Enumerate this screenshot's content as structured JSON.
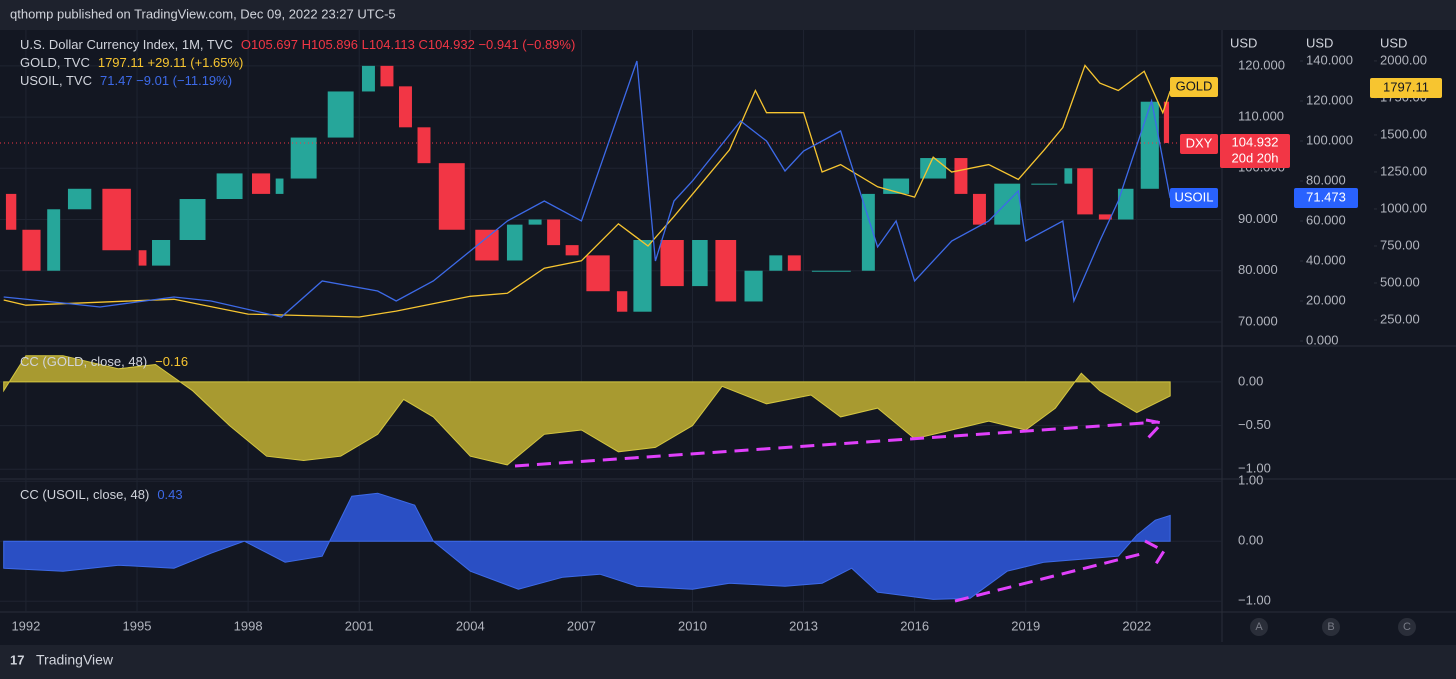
{
  "header": {
    "text": "qthomp published on TradingView.com, Dec 09, 2022 23:27 UTC-5"
  },
  "footer": {
    "brand": "TradingView",
    "buttons": [
      "A",
      "B",
      "C"
    ]
  },
  "chart_data": [
    {
      "type": "line",
      "axis_units": [
        "USD",
        "USD",
        "USD"
      ],
      "legend_stats": [
        "O105.697 H105.896 L104.113 C104.932 −0.941 (−0.89%)",
        "1797.11 +29.11 (+1.65%)",
        "71.47 −9.01 (−11.19%)"
      ],
      "badges": [
        {
          "name": "GOLD",
          "label": "1797.11"
        },
        {
          "name": "DXY",
          "label": "104.932",
          "sub": "20d 20h"
        },
        {
          "name": "USOIL",
          "label": "71.473"
        }
      ],
      "xlim": [
        1991.3,
        2024.3
      ],
      "xticks": [
        1992,
        1995,
        1998,
        2001,
        2004,
        2007,
        2010,
        2013,
        2016,
        2019,
        2022
      ],
      "ylim": [
        65.5,
        127
      ],
      "yticks": [
        {
          "value": 70,
          "label": "70.000"
        },
        {
          "value": 80,
          "label": "80.000"
        },
        {
          "value": 90,
          "label": "90.000"
        },
        {
          "value": 100,
          "label": "100.000"
        },
        {
          "value": 110,
          "label": "110.000"
        },
        {
          "value": 120,
          "label": "120.000"
        }
      ],
      "y2lim": [
        -2,
        155.5
      ],
      "y2ticks": [
        {
          "value": 0,
          "label": "0.000"
        },
        {
          "value": 20,
          "label": "20.000"
        },
        {
          "value": 40,
          "label": "40.000"
        },
        {
          "value": 60,
          "label": "60.000"
        },
        {
          "value": 80,
          "label": "80.000"
        },
        {
          "value": 100,
          "label": "100.000"
        },
        {
          "value": 120,
          "label": "120.000"
        },
        {
          "value": 140,
          "label": "140.000"
        }
      ],
      "y3lim": [
        81,
        2209
      ],
      "y3ticks": [
        {
          "value": 250,
          "label": "250.00"
        },
        {
          "value": 500,
          "label": "500.00"
        },
        {
          "value": 750,
          "label": "750.00"
        },
        {
          "value": 1000,
          "label": "1000.00"
        },
        {
          "value": 1250,
          "label": "1250.00"
        },
        {
          "value": 1500,
          "label": "1500.00"
        },
        {
          "value": 1750,
          "label": "1750.00"
        },
        {
          "value": 2000,
          "label": "2000.00"
        }
      ],
      "series": [
        {
          "name": "U.S. Dollar Currency Index, 1M, TVC",
          "style": "candles",
          "axis": "y",
          "color": "#26a69a",
          "down_color": "#f23645",
          "x": [
            1991.4,
            1991.8,
            1992.5,
            1993,
            1993.9,
            1995,
            1995.3,
            1996,
            1997,
            1998,
            1998.7,
            1999,
            2000,
            2001,
            2001.5,
            2002,
            2002.5,
            2003,
            2004,
            2004.9,
            2005.5,
            2006,
            2006.5,
            2007,
            2007.9,
            2008.3,
            2009,
            2009.9,
            2010.5,
            2011.3,
            2012,
            2012.5,
            2013,
            2014.5,
            2015,
            2016,
            2017,
            2017.5,
            2018,
            2019,
            2020,
            2020.3,
            2020.9,
            2021.4,
            2022,
            2022.7,
            2022.9
          ],
          "values": [
            95,
            88,
            80,
            92,
            96,
            84,
            81,
            86,
            94,
            99,
            95,
            98,
            106,
            115,
            120,
            116,
            108,
            101,
            88,
            82,
            89,
            90,
            85,
            83,
            76,
            72,
            86,
            77,
            86,
            74,
            80,
            83,
            80,
            80,
            95,
            98,
            102,
            95,
            89,
            97,
            97,
            100,
            91,
            90,
            96,
            113,
            104.932
          ]
        },
        {
          "name": "GOLD, TVC",
          "axis": "y3",
          "color": "#f7c530",
          "x": [
            1991.4,
            1992,
            1995,
            1996,
            1998,
            2001,
            2002,
            2004,
            2005,
            2006,
            2007,
            2008,
            2008.8,
            2009.5,
            2010,
            2011,
            2011.7,
            2012,
            2013,
            2013.5,
            2014,
            2015,
            2016,
            2016.5,
            2017,
            2018,
            2018.8,
            2019.5,
            2020,
            2020.6,
            2021,
            2021.5,
            2022.2,
            2022.7,
            2022.9
          ],
          "values": [
            385,
            350,
            380,
            390,
            290,
            270,
            310,
            410,
            430,
            600,
            650,
            900,
            750,
            950,
            1100,
            1400,
            1800,
            1650,
            1650,
            1250,
            1300,
            1150,
            1080,
            1350,
            1250,
            1300,
            1200,
            1400,
            1550,
            1970,
            1850,
            1800,
            1930,
            1650,
            1797.11
          ]
        },
        {
          "name": "USOIL, TVC",
          "axis": "y2",
          "color": "#3d6ae8",
          "x": [
            1991.4,
            1993,
            1994,
            1996,
            1997,
            1998.9,
            2000,
            2001.5,
            2002,
            2003,
            2004,
            2005,
            2006,
            2007,
            2008.5,
            2009,
            2009.5,
            2010,
            2011.3,
            2012,
            2012.5,
            2013,
            2014,
            2015,
            2015.5,
            2016,
            2017,
            2018,
            2018.8,
            2019,
            2020,
            2020.3,
            2021,
            2021.5,
            2022.4,
            2022.9
          ],
          "values": [
            22,
            19,
            17,
            22,
            20,
            12,
            30,
            25,
            20,
            30,
            45,
            60,
            70,
            60,
            140,
            40,
            70,
            80,
            110,
            100,
            85,
            95,
            105,
            47,
            60,
            30,
            50,
            60,
            75,
            50,
            60,
            20,
            50,
            70,
            120,
            71.47
          ]
        }
      ]
    },
    {
      "type": "area",
      "title": "CC (GOLD, close, 48)",
      "last_label": "−0.16",
      "ylim": [
        -1.1,
        0.4
      ],
      "yticks": [
        {
          "value": 0,
          "label": "0.00"
        },
        {
          "value": -0.5,
          "label": "−0.50"
        },
        {
          "value": -1,
          "label": "−1.00"
        }
      ],
      "series": [
        {
          "name": "CC (GOLD, close, 48)",
          "color": "#a89a30",
          "line_color": "#d4c640",
          "x": [
            1991.4,
            1992,
            1993,
            1994.5,
            1995.5,
            1996.5,
            1997.5,
            1998.5,
            1999.5,
            2000.5,
            2001.5,
            2002.2,
            2003,
            2004,
            2005,
            2006,
            2007,
            2008,
            2009,
            2010,
            2010.8,
            2012,
            2013.2,
            2014,
            2015,
            2016,
            2017,
            2018,
            2019,
            2019.8,
            2020.5,
            2021,
            2022,
            2022.9
          ],
          "values": [
            -0.1,
            0.3,
            0.3,
            0.15,
            0.2,
            -0.1,
            -0.5,
            -0.85,
            -0.9,
            -0.85,
            -0.6,
            -0.2,
            -0.4,
            -0.85,
            -0.95,
            -0.6,
            -0.55,
            -0.8,
            -0.75,
            -0.5,
            -0.05,
            -0.25,
            -0.15,
            -0.4,
            -0.3,
            -0.65,
            -0.55,
            -0.45,
            -0.55,
            -0.3,
            0.1,
            -0.1,
            -0.35,
            -0.16
          ]
        }
      ]
    },
    {
      "type": "area",
      "title": "CC (USOIL, close, 48)",
      "last_label": "0.43",
      "ylim": [
        -1.18,
        1.02
      ],
      "yticks": [
        {
          "value": 1,
          "label": "1.00"
        },
        {
          "value": 0,
          "label": "0.00"
        },
        {
          "value": -1,
          "label": "−1.00"
        }
      ],
      "series": [
        {
          "name": "CC (USOIL, close, 48)",
          "color": "#2a4fc4",
          "line_color": "#3d6ae8",
          "x": [
            1991.4,
            1993,
            1994.5,
            1996,
            1997,
            1997.9,
            1999,
            2000,
            2000.8,
            2001.5,
            2002.5,
            2003,
            2004,
            2005.3,
            2006.5,
            2007.5,
            2008.5,
            2010,
            2011,
            2012.5,
            2013.5,
            2014.3,
            2015,
            2016.5,
            2017.5,
            2018.5,
            2019.5,
            2020.5,
            2021.5,
            2022,
            2022.5,
            2022.9
          ],
          "values": [
            -0.45,
            -0.5,
            -0.4,
            -0.45,
            -0.2,
            0,
            -0.35,
            -0.25,
            0.75,
            0.8,
            0.6,
            0,
            -0.5,
            -0.8,
            -0.6,
            -0.55,
            -0.75,
            -0.8,
            -0.7,
            -0.75,
            -0.7,
            -0.45,
            -0.85,
            -0.97,
            -0.95,
            -0.5,
            -0.35,
            -0.3,
            -0.25,
            0.1,
            0.35,
            0.43
          ]
        }
      ]
    }
  ]
}
